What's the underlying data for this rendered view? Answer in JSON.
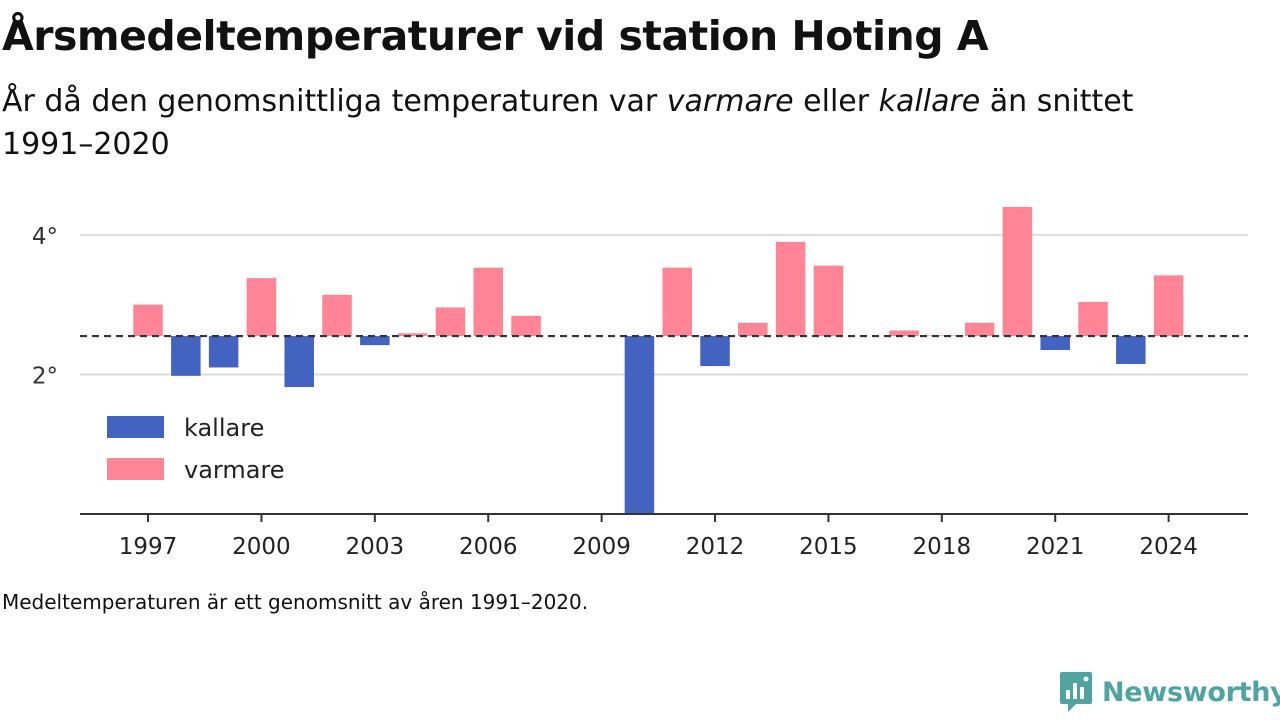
{
  "title": "Årsmedeltemperaturer vid station Hoting A",
  "subtitle": {
    "part1": "År då den genomsnittliga temperaturen var ",
    "warm_word": "varmare",
    "part2": " eller ",
    "cold_word": "kallare",
    "part3": " än snittet 1991–2020"
  },
  "footnote": "Medeltemperaturen är ett genomsnitt av åren 1991–2020.",
  "brand": "Newsworthy",
  "colors": {
    "cold": "#4263bf",
    "warm": "#ff8596",
    "grid": "#dddddd",
    "axis": "#333333",
    "brand": "#4fa3a0"
  },
  "chart_data": {
    "type": "bar",
    "baseline": 2.55,
    "ylim": [
      0,
      4.5
    ],
    "yticks": [
      {
        "value": 2,
        "label": "2°"
      },
      {
        "value": 4,
        "label": "4°"
      }
    ],
    "xticks": [
      1997,
      2000,
      2003,
      2006,
      2009,
      2012,
      2015,
      2018,
      2021,
      2024
    ],
    "xlim": [
      1995.2,
      2026.1
    ],
    "grid": true,
    "baseline_style": "dashed",
    "legend": {
      "placement": "left",
      "items": [
        {
          "key": "cold",
          "label": "kallare"
        },
        {
          "key": "warm",
          "label": "varmare"
        }
      ]
    },
    "years": [
      1997,
      1998,
      1999,
      2000,
      2001,
      2002,
      2003,
      2004,
      2005,
      2006,
      2007,
      2010,
      2011,
      2012,
      2013,
      2014,
      2015,
      2017,
      2018,
      2019,
      2020,
      2021,
      2022,
      2023,
      2024
    ],
    "values": [
      3.0,
      1.98,
      2.1,
      3.38,
      1.82,
      3.14,
      2.42,
      2.59,
      2.96,
      3.53,
      2.84,
      0.0,
      3.53,
      2.12,
      2.74,
      3.9,
      3.56,
      2.63,
      2.56,
      2.74,
      4.4,
      2.35,
      3.04,
      2.15,
      3.42
    ]
  }
}
